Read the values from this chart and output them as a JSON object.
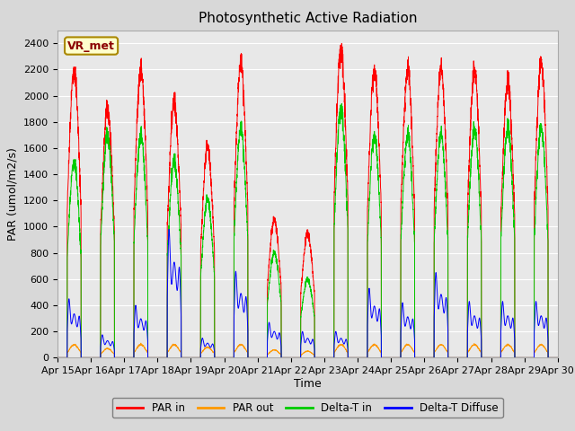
{
  "title": "Photosynthetic Active Radiation",
  "ylabel": "PAR (umol/m2/s)",
  "xlabel": "Time",
  "annotation": "VR_met",
  "ylim": [
    0,
    2500
  ],
  "num_days": 15,
  "x_tick_labels": [
    "Apr 15",
    "Apr 16",
    "Apr 17",
    "Apr 18",
    "Apr 19",
    "Apr 20",
    "Apr 21",
    "Apr 22",
    "Apr 23",
    "Apr 24",
    "Apr 25",
    "Apr 26",
    "Apr 27",
    "Apr 28",
    "Apr 29",
    "Apr 30"
  ],
  "colors": {
    "PAR_in": "#ff0000",
    "PAR_out": "#ff9900",
    "Delta_T_in": "#00cc00",
    "Delta_T_Diffuse": "#0000ff"
  },
  "legend_labels": [
    "PAR in",
    "PAR out",
    "Delta-T in",
    "Delta-T Diffuse"
  ],
  "fig_facecolor": "#d8d8d8",
  "plot_facecolor": "#e8e8e8",
  "title_fontsize": 11,
  "label_fontsize": 9,
  "tick_fontsize": 8,
  "annotation_fontsize": 9,
  "points_per_day": 288,
  "day_peak_PAR_in": [
    2200,
    1900,
    2200,
    1950,
    1600,
    2250,
    1050,
    950,
    2350,
    2200,
    2200,
    2200,
    2200,
    2100,
    2250
  ],
  "day_peak_PAR_out": [
    100,
    70,
    100,
    100,
    80,
    100,
    60,
    50,
    100,
    100,
    100,
    100,
    100,
    100,
    100
  ],
  "day_peak_Delta_T_in": [
    1500,
    1700,
    1700,
    1500,
    1200,
    1750,
    800,
    600,
    1900,
    1700,
    1700,
    1700,
    1750,
    1750,
    1750
  ],
  "day_peak_Delta_T_diff": [
    450,
    175,
    400,
    980,
    150,
    660,
    270,
    200,
    200,
    530,
    420,
    650,
    430,
    430,
    430
  ],
  "day_peak2_Delta_T_diff": [
    380,
    170,
    380,
    200,
    140,
    420,
    200,
    180,
    180,
    200,
    250,
    200,
    300,
    200,
    170
  ]
}
